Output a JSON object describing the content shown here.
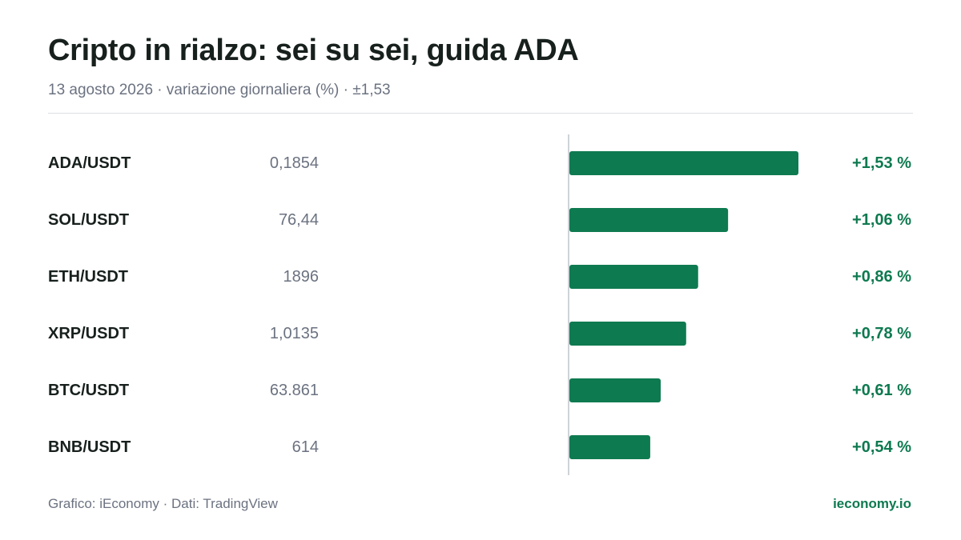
{
  "header": {
    "title": "Cripto in rialzo: sei su sei, guida ADA",
    "subtitle": "13 agosto 2026 · variazione giornaliera (%) · ±1,53"
  },
  "footer": {
    "credit": "Grafico: iEconomy · Dati: TradingView",
    "brand": "ieconomy.io"
  },
  "colors": {
    "bar": "#0e7a50",
    "value_label": "#0e7a50",
    "pair_label": "#17201c",
    "price_label": "#6b7280",
    "axis": "#cfd3d8"
  },
  "chart_data": {
    "type": "bar",
    "orientation": "horizontal",
    "categories": [
      "ADA/USDT",
      "SOL/USDT",
      "ETH/USDT",
      "XRP/USDT",
      "BTC/USDT",
      "BNB/USDT"
    ],
    "prices": [
      "0,1854",
      "76,44",
      "1896",
      "1,0135",
      "63.861",
      "614"
    ],
    "values": [
      1.53,
      1.06,
      0.86,
      0.78,
      0.61,
      0.54
    ],
    "value_labels": [
      "+1,53 %",
      "+1,06 %",
      "+0,86 %",
      "+0,78 %",
      "+0,61 %",
      "+0,54 %"
    ],
    "xlim": [
      0,
      1.53
    ],
    "grid": false,
    "legend": "none"
  }
}
